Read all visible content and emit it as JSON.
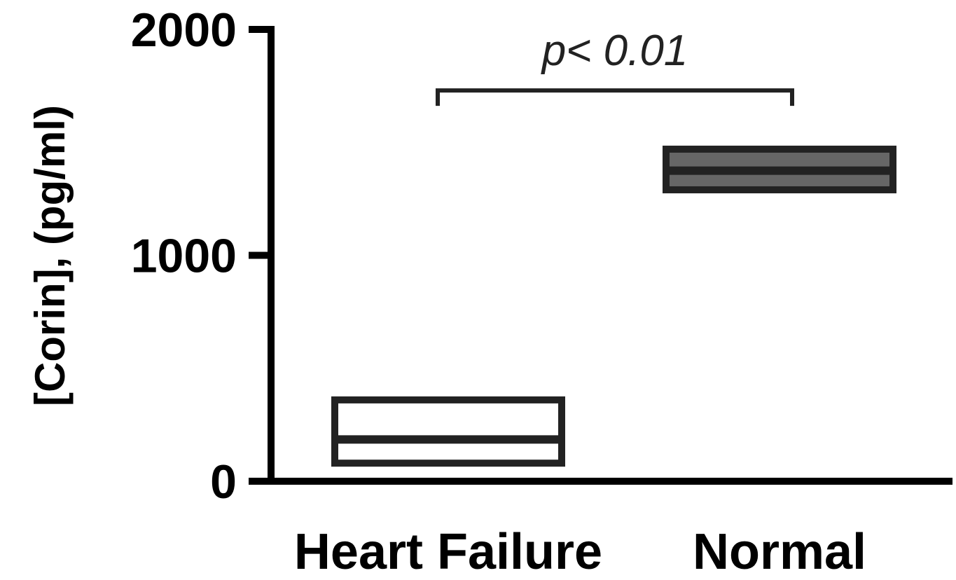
{
  "chart_data": {
    "type": "box",
    "title": "",
    "ylabel": "[Corin], (pg/ml)",
    "xlabel": "",
    "categories": [
      "Heart Failure",
      "Normal"
    ],
    "boxes": [
      {
        "category": "Heart Failure",
        "q1": 80,
        "median": 185,
        "q3": 360,
        "fill": "#ffffff"
      },
      {
        "category": "Normal",
        "q1": 1290,
        "median": 1375,
        "q3": 1470,
        "fill": "#666666"
      }
    ],
    "ylim": [
      0,
      2000
    ],
    "yticks": [
      0,
      1000,
      2000
    ],
    "ytick_labels": [
      "0",
      "1000",
      "2000"
    ],
    "grid": false,
    "annotation": {
      "text": "p< 0.01",
      "between": [
        "Heart Failure",
        "Normal"
      ],
      "level": 1730
    },
    "colors": {
      "stroke": "#222222",
      "axis": "#000000"
    }
  }
}
